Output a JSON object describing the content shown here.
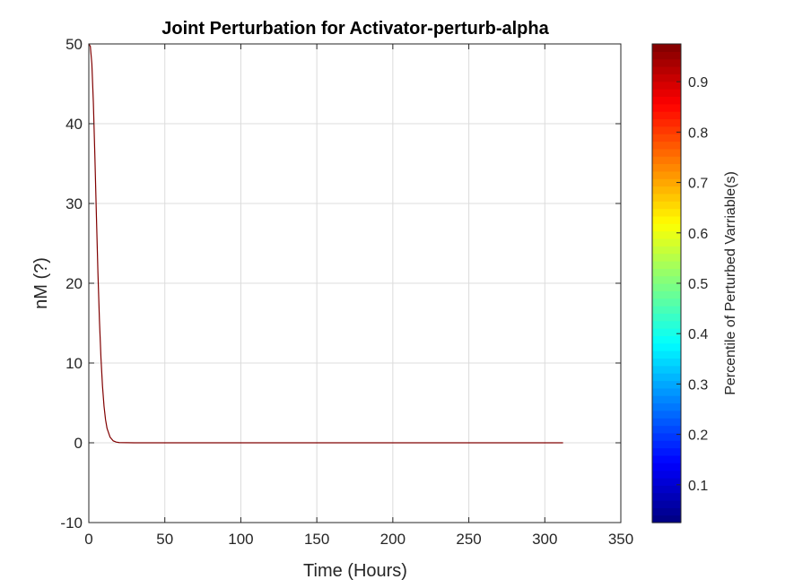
{
  "chart_data": {
    "type": "line",
    "title": "Joint Perturbation for Activator-perturb-alpha",
    "xlabel": "Time (Hours)",
    "ylabel": "nM (?)",
    "xlim": [
      0,
      350
    ],
    "ylim": [
      -10,
      50
    ],
    "xticks": [
      0,
      50,
      100,
      150,
      200,
      250,
      300,
      350
    ],
    "yticks": [
      -10,
      0,
      10,
      20,
      30,
      40,
      50
    ],
    "xtick_labels": [
      "0",
      "50",
      "100",
      "150",
      "200",
      "250",
      "300",
      "350"
    ],
    "ytick_labels": [
      "-10",
      "0",
      "10",
      "20",
      "30",
      "40",
      "50"
    ],
    "grid": true,
    "series": [
      {
        "color": "#800000",
        "x": [
          0,
          1,
          2,
          3,
          4,
          5,
          6,
          7,
          8,
          9,
          10,
          11,
          12,
          14,
          16,
          18,
          20,
          25,
          30,
          40,
          60,
          100,
          150,
          200,
          250,
          300,
          312
        ],
        "y": [
          50,
          49.7,
          47.5,
          42.6,
          35.8,
          28.4,
          21.3,
          15.3,
          10.6,
          7.1,
          4.6,
          2.9,
          1.8,
          0.7,
          0.25,
          0.09,
          0.03,
          0.01,
          0,
          0,
          0,
          0,
          0,
          0,
          0,
          0,
          0
        ]
      }
    ],
    "colorbar": {
      "label": "Percentile of Perturbed Varriable(s)",
      "colormap": "jet",
      "range": [
        0.025,
        0.975
      ],
      "ticks": [
        0.1,
        0.2,
        0.3,
        0.4,
        0.5,
        0.6,
        0.7,
        0.8,
        0.9
      ],
      "tick_labels": [
        "0.1",
        "0.2",
        "0.3",
        "0.4",
        "0.5",
        "0.6",
        "0.7",
        "0.8",
        "0.9"
      ]
    }
  }
}
